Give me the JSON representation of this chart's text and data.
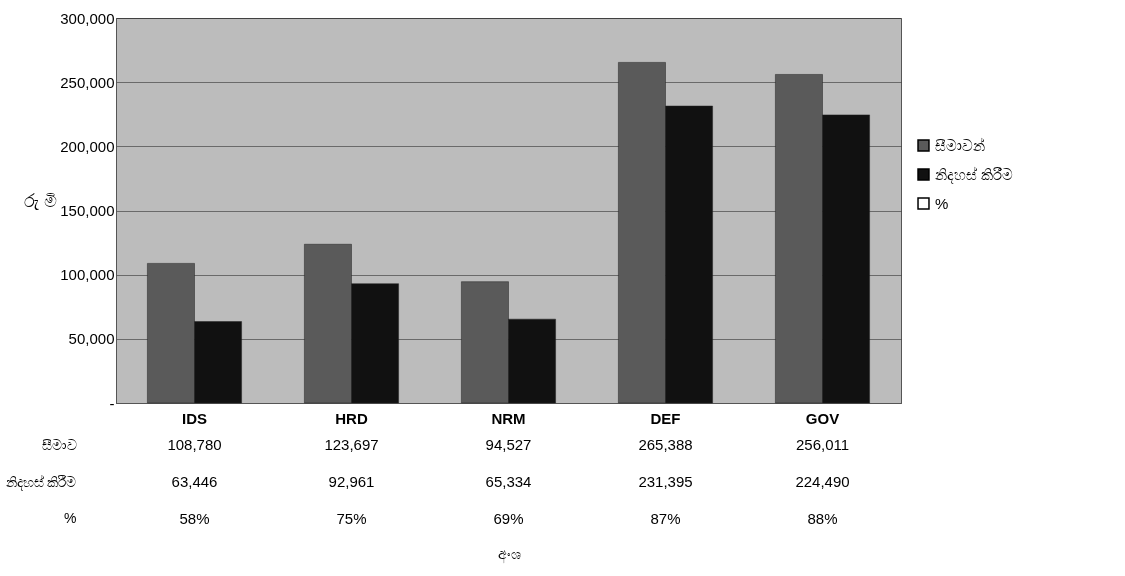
{
  "chart_data": {
    "type": "bar",
    "ylabel": "රු මි",
    "categories": [
      "IDS",
      "HRD",
      "NRM",
      "DEF",
      "GOV"
    ],
    "series": [
      {
        "name": "සීමාවන්",
        "color": "#5a5a5a",
        "values": [
          108780,
          123697,
          94527,
          265388,
          256011
        ],
        "value_labels": [
          "108,780",
          "123,697",
          "94,527",
          "265,388",
          "256,011"
        ]
      },
      {
        "name": "නිදහස් කිරීම",
        "color": "#111111",
        "values": [
          63446,
          92961,
          65334,
          231395,
          224490
        ],
        "value_labels": [
          "63,446",
          "92,961",
          "65,334",
          "231,395",
          "224,490"
        ]
      },
      {
        "name": "%",
        "color": "#ffffff",
        "values": [
          null,
          null,
          null,
          null,
          null
        ],
        "value_labels": [
          "58%",
          "75%",
          "69%",
          "87%",
          "88%"
        ]
      }
    ],
    "annotations": [
      "සීමාව",
      "නිදහස් කිරීම",
      "%",
      "අංශ"
    ],
    "ylim": [
      0,
      300000
    ],
    "yticks": [
      {
        "value": 0,
        "label": "-"
      },
      {
        "value": 50000,
        "label": "50,000"
      },
      {
        "value": 100000,
        "label": "100,000"
      },
      {
        "value": 150000,
        "label": "150,000"
      },
      {
        "value": 200000,
        "label": "200,000"
      },
      {
        "value": 250000,
        "label": "250,000"
      },
      {
        "value": 300000,
        "label": "300,000"
      }
    ],
    "grid": "y",
    "legend": "right"
  }
}
